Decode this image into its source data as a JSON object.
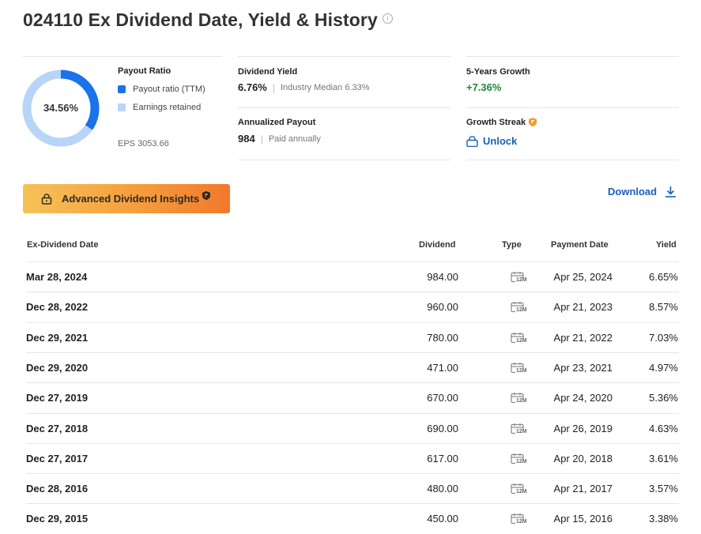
{
  "header": {
    "title": "024110 Ex Dividend Date, Yield & History",
    "info_icon": "info-icon"
  },
  "payout": {
    "title": "Payout Ratio",
    "ratio_label": "34.56%",
    "ratio": 0.3456,
    "legend": [
      {
        "label": "Payout ratio (TTM)",
        "color": "#1a73e8"
      },
      {
        "label": "Earnings retained",
        "color": "#b8d4f7"
      }
    ],
    "eps": "EPS 3053.66"
  },
  "stats": {
    "dividend_yield": {
      "label": "Dividend Yield",
      "value": "6.76%",
      "note": "Industry Median 6.33%"
    },
    "annualized_payout": {
      "label": "Annualized Payout",
      "value": "984",
      "note": "Paid annually"
    },
    "growth": {
      "label": "5-Years Growth",
      "value": "+7.36%"
    },
    "streak": {
      "label": "Growth Streak",
      "action": "Unlock"
    }
  },
  "actions": {
    "insights_label": "Advanced Dividend Insights",
    "download_label": "Download"
  },
  "table": {
    "headers": {
      "ex_date": "Ex-Dividend Date",
      "dividend": "Dividend",
      "type": "Type",
      "payment_date": "Payment Date",
      "yield": "Yield"
    },
    "type_badge": "12M",
    "rows": [
      {
        "ex_date": "Mar 28, 2024",
        "dividend": "984.00",
        "payment_date": "Apr 25, 2024",
        "yield": "6.65%"
      },
      {
        "ex_date": "Dec 28, 2022",
        "dividend": "960.00",
        "payment_date": "Apr 21, 2023",
        "yield": "8.57%"
      },
      {
        "ex_date": "Dec 29, 2021",
        "dividend": "780.00",
        "payment_date": "Apr 21, 2022",
        "yield": "7.03%"
      },
      {
        "ex_date": "Dec 29, 2020",
        "dividend": "471.00",
        "payment_date": "Apr 23, 2021",
        "yield": "4.97%"
      },
      {
        "ex_date": "Dec 27, 2019",
        "dividend": "670.00",
        "payment_date": "Apr 24, 2020",
        "yield": "5.36%"
      },
      {
        "ex_date": "Dec 27, 2018",
        "dividend": "690.00",
        "payment_date": "Apr 26, 2019",
        "yield": "4.63%"
      },
      {
        "ex_date": "Dec 27, 2017",
        "dividend": "617.00",
        "payment_date": "Apr 20, 2018",
        "yield": "3.61%"
      },
      {
        "ex_date": "Dec 28, 2016",
        "dividend": "480.00",
        "payment_date": "Apr 21, 2017",
        "yield": "3.57%"
      },
      {
        "ex_date": "Dec 29, 2015",
        "dividend": "450.00",
        "payment_date": "Apr 15, 2016",
        "yield": "3.38%"
      }
    ]
  }
}
